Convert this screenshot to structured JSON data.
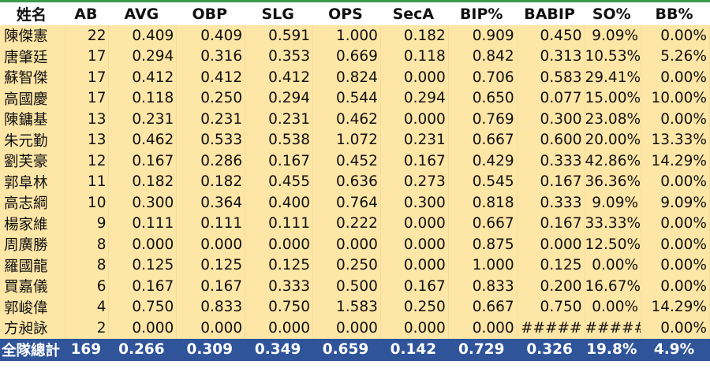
{
  "sheet": {
    "header": [
      "姓名",
      "AB",
      "AVG",
      "OBP",
      "SLG",
      "OPS",
      "SecA",
      "BIP%",
      "BABIP",
      "SO%",
      "BB%"
    ],
    "rows": [
      [
        "陳傑憲",
        "22",
        "0.409",
        "0.409",
        "0.591",
        "1.000",
        "0.182",
        "0.909",
        "0.450",
        "9.09%",
        "0.00%"
      ],
      [
        "唐肇廷",
        "17",
        "0.294",
        "0.316",
        "0.353",
        "0.669",
        "0.118",
        "0.842",
        "0.313",
        "10.53%",
        "5.26%"
      ],
      [
        "蘇智傑",
        "17",
        "0.412",
        "0.412",
        "0.412",
        "0.824",
        "0.000",
        "0.706",
        "0.583",
        "29.41%",
        "0.00%"
      ],
      [
        "高國慶",
        "17",
        "0.118",
        "0.250",
        "0.294",
        "0.544",
        "0.294",
        "0.650",
        "0.077",
        "15.00%",
        "10.00%"
      ],
      [
        "陳鏞基",
        "13",
        "0.231",
        "0.231",
        "0.231",
        "0.462",
        "0.000",
        "0.769",
        "0.300",
        "23.08%",
        "0.00%"
      ],
      [
        "朱元勤",
        "13",
        "0.462",
        "0.533",
        "0.538",
        "1.072",
        "0.231",
        "0.667",
        "0.600",
        "20.00%",
        "13.33%"
      ],
      [
        "劉芙豪",
        "12",
        "0.167",
        "0.286",
        "0.167",
        "0.452",
        "0.167",
        "0.429",
        "0.333",
        "42.86%",
        "14.29%"
      ],
      [
        "郭阜林",
        "11",
        "0.182",
        "0.182",
        "0.455",
        "0.636",
        "0.273",
        "0.545",
        "0.167",
        "36.36%",
        "0.00%"
      ],
      [
        "高志綱",
        "10",
        "0.300",
        "0.364",
        "0.400",
        "0.764",
        "0.300",
        "0.818",
        "0.333",
        "9.09%",
        "9.09%"
      ],
      [
        "楊家維",
        "9",
        "0.111",
        "0.111",
        "0.111",
        "0.222",
        "0.000",
        "0.667",
        "0.167",
        "33.33%",
        "0.00%"
      ],
      [
        "周廣勝",
        "8",
        "0.000",
        "0.000",
        "0.000",
        "0.000",
        "0.000",
        "0.875",
        "0.000",
        "12.50%",
        "0.00%"
      ],
      [
        "羅國龍",
        "8",
        "0.125",
        "0.125",
        "0.125",
        "0.250",
        "0.000",
        "1.000",
        "0.125",
        "0.00%",
        "0.00%"
      ],
      [
        "買嘉儀",
        "6",
        "0.167",
        "0.167",
        "0.333",
        "0.500",
        "0.167",
        "0.833",
        "0.200",
        "16.67%",
        "0.00%"
      ],
      [
        "郭峻偉",
        "4",
        "0.750",
        "0.833",
        "0.750",
        "1.583",
        "0.250",
        "0.667",
        "0.750",
        "0.00%",
        "14.29%"
      ],
      [
        "方昶詠",
        "2",
        "0.000",
        "0.000",
        "0.000",
        "0.000",
        "0.000",
        "0.000",
        "#####",
        "#####",
        "0.00%"
      ]
    ],
    "total": [
      "全隊總計",
      "169",
      "0.266",
      "0.309",
      "0.349",
      "0.659",
      "0.142",
      "0.729",
      "0.326",
      "19.8%",
      "4.9%"
    ]
  },
  "colors": {
    "row_fill": "#fee6a6",
    "total_fill": "#30549a",
    "total_text": "#ffffff",
    "top_border": "#3c9a4e"
  }
}
